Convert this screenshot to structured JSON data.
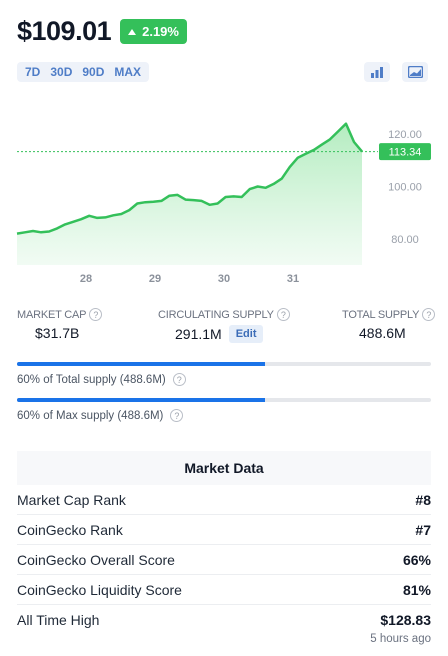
{
  "price": "$109.01",
  "change": "2.19%",
  "ranges": [
    "7D",
    "30D",
    "90D",
    "MAX"
  ],
  "current_price_label": "113.34",
  "stats": {
    "market_cap": {
      "label": "MARKET CAP",
      "value": "$31.7B"
    },
    "circulating_supply": {
      "label": "CIRCULATING SUPPLY",
      "value": "291.1M",
      "edit_label": "Edit"
    },
    "total_supply": {
      "label": "TOTAL SUPPLY",
      "value": "488.6M"
    }
  },
  "supply_bars": [
    {
      "caption": "60% of Total supply (488.6M)",
      "percent": 60
    },
    {
      "caption": "60% of Max supply (488.6M)",
      "percent": 60
    }
  ],
  "market_data": {
    "title": "Market Data",
    "rows": [
      {
        "key": "Market Cap Rank",
        "value": "#8"
      },
      {
        "key": "CoinGecko Rank",
        "value": "#7"
      },
      {
        "key": "CoinGecko Overall Score",
        "value": "66%"
      },
      {
        "key": "CoinGecko Liquidity Score",
        "value": "81%"
      },
      {
        "key": "All Time High",
        "value": "$128.83",
        "sub": "5 hours ago"
      }
    ]
  },
  "colors": {
    "up": "#34c05a",
    "accent": "#4f7dc7",
    "bar": "#1a73e8"
  },
  "chart_data": {
    "type": "area",
    "xticks": [
      "28",
      "29",
      "30",
      "31"
    ],
    "yticks": [
      "120.00",
      "100.00",
      "80.00"
    ],
    "ylim": [
      70,
      130
    ],
    "last_price": 113.34,
    "x": [
      0.0,
      0.1,
      0.2,
      0.3,
      0.4,
      0.5,
      0.6,
      0.7,
      0.8,
      0.9,
      1.0,
      1.1,
      1.2,
      1.3,
      1.4,
      1.5,
      1.6,
      1.7,
      1.8,
      1.9,
      2.0,
      2.1,
      2.2,
      2.3,
      2.4,
      2.5,
      2.6,
      2.7,
      2.8,
      2.9,
      3.0,
      3.1,
      3.2,
      3.3,
      3.4,
      3.5,
      3.6,
      3.7,
      3.8,
      3.9,
      4.0,
      4.1,
      4.2,
      4.3
    ],
    "y": [
      82.0,
      82.5,
      83.0,
      82.5,
      82.8,
      84.0,
      85.5,
      86.5,
      87.5,
      88.8,
      88.0,
      88.2,
      89.0,
      89.5,
      91.0,
      93.5,
      94.0,
      94.2,
      94.5,
      96.5,
      96.8,
      95.0,
      94.8,
      94.5,
      93.0,
      93.5,
      96.0,
      96.2,
      96.0,
      99.0,
      100.0,
      99.5,
      101.0,
      103.0,
      107.5,
      111.0,
      112.5,
      114.0,
      116.0,
      118.0,
      121.0,
      124.0,
      117.0,
      113.34
    ]
  }
}
